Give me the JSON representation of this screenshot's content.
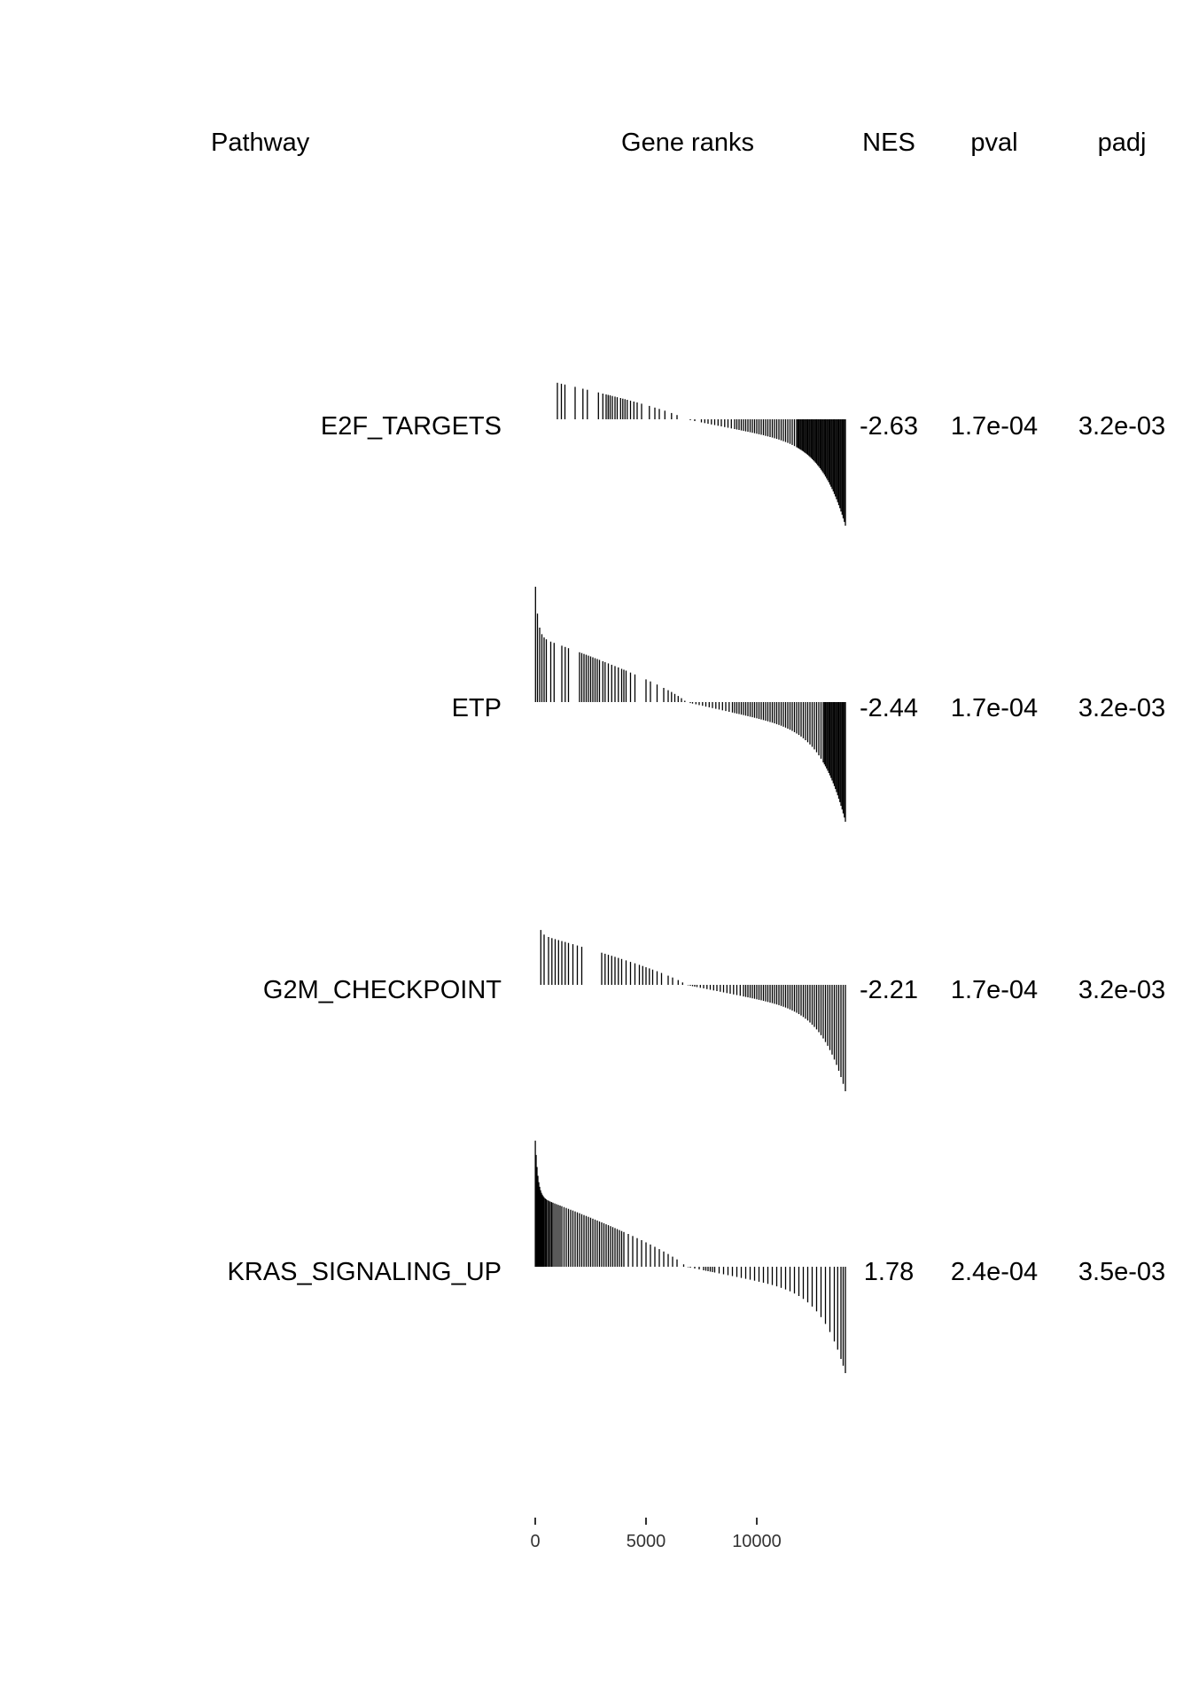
{
  "chart_data": {
    "type": "table",
    "headers": {
      "pathway": "Pathway",
      "gene_ranks": "Gene ranks",
      "nes": "NES",
      "pval": "pval",
      "padj": "padj"
    },
    "x_axis": {
      "range": [
        0,
        14000
      ],
      "ticks": [
        0,
        5000,
        10000
      ],
      "tick_labels": [
        "0",
        "5000",
        "10000"
      ]
    },
    "rank_profile": {
      "description": "ranked gene statistic; positive at low ranks, crosses zero near rank 6800",
      "zero_cross": 6800,
      "max": 1.0,
      "min": -1.0
    },
    "rows": [
      {
        "pathway": "E2F_TARGETS",
        "nes": "-2.63",
        "pval": "1.7e-04",
        "padj": "3.2e-03",
        "hit_ranks": [
          1000,
          1180,
          1340,
          1800,
          2150,
          2350,
          2850,
          3050,
          3200,
          3290,
          3380,
          3480,
          3600,
          3700,
          3850,
          3950,
          4050,
          4150,
          4300,
          4450,
          4600,
          4800,
          5150,
          5400,
          5600,
          5850,
          6150,
          6400,
          7000,
          7200,
          7500,
          7650,
          7800,
          7950,
          8100,
          8250,
          8400,
          8550,
          8700,
          8850,
          9000,
          9100,
          9200,
          9300,
          9400,
          9500,
          9600,
          9700,
          9800,
          9900,
          10000,
          10100,
          10200,
          10300,
          10400,
          10500,
          10600,
          10700,
          10800,
          10900,
          11000,
          11100,
          11200,
          11300,
          11400,
          11500,
          11600,
          11700,
          11800,
          11850,
          11900,
          11950,
          12000,
          12050,
          12100,
          12150,
          12200,
          12250,
          12300,
          12350,
          12400,
          12450,
          12500,
          12550,
          12600,
          12650,
          12700,
          12750,
          12800,
          12850,
          12900,
          12950,
          13000,
          13050,
          13100,
          13150,
          13200,
          13250,
          13300,
          13350,
          13400,
          13450,
          13500,
          13550,
          13600,
          13650,
          13700,
          13750,
          13800,
          13850,
          13900,
          13950,
          14000
        ]
      },
      {
        "pathway": "ETP",
        "nes": "-2.44",
        "pval": "1.7e-04",
        "padj": "3.2e-03",
        "hit_ranks": [
          10,
          100,
          200,
          300,
          400,
          500,
          700,
          850,
          1200,
          1350,
          1500,
          2000,
          2100,
          2200,
          2300,
          2400,
          2500,
          2600,
          2700,
          2800,
          2900,
          3050,
          3150,
          3300,
          3450,
          3600,
          3750,
          3900,
          4000,
          4100,
          4300,
          4500,
          5000,
          5200,
          5500,
          5800,
          6000,
          6150,
          6300,
          6450,
          6600,
          6750,
          7000,
          7100,
          7250,
          7400,
          7550,
          7700,
          7850,
          8000,
          8150,
          8300,
          8450,
          8600,
          8750,
          8900,
          9000,
          9100,
          9200,
          9300,
          9400,
          9500,
          9600,
          9700,
          9800,
          9900,
          10000,
          10100,
          10200,
          10300,
          10400,
          10500,
          10600,
          10700,
          10800,
          10900,
          11000,
          11100,
          11200,
          11300,
          11400,
          11500,
          11600,
          11700,
          11800,
          11900,
          12000,
          12100,
          12200,
          12300,
          12400,
          12500,
          12600,
          12700,
          12800,
          12900,
          13000,
          13050,
          13100,
          13150,
          13200,
          13250,
          13300,
          13350,
          13400,
          13450,
          13500,
          13550,
          13600,
          13650,
          13700,
          13750,
          13800,
          13850,
          13900,
          13950,
          14000
        ]
      },
      {
        "pathway": "G2M_CHECKPOINT",
        "nes": "-2.21",
        "pval": "1.7e-04",
        "padj": "3.2e-03",
        "hit_ranks": [
          250,
          400,
          600,
          750,
          900,
          1050,
          1200,
          1350,
          1500,
          1700,
          1900,
          2100,
          3000,
          3150,
          3300,
          3450,
          3600,
          3750,
          3900,
          4100,
          4300,
          4500,
          4700,
          4850,
          5000,
          5150,
          5300,
          5500,
          5700,
          6000,
          6200,
          6450,
          6650,
          6800,
          6900,
          7000,
          7100,
          7200,
          7300,
          7450,
          7600,
          7750,
          7900,
          8050,
          8200,
          8350,
          8500,
          8650,
          8800,
          8950,
          9100,
          9250,
          9400,
          9500,
          9600,
          9700,
          9800,
          9900,
          10000,
          10100,
          10200,
          10300,
          10400,
          10500,
          10600,
          10700,
          10800,
          10900,
          11000,
          11100,
          11200,
          11300,
          11400,
          11500,
          11600,
          11700,
          11800,
          11900,
          12000,
          12100,
          12200,
          12300,
          12400,
          12500,
          12600,
          12700,
          12800,
          12900,
          13000,
          13100,
          13200,
          13300,
          13400,
          13500,
          13600,
          13700,
          13800,
          13900,
          14000
        ]
      },
      {
        "pathway": "KRAS_SIGNALING_UP",
        "nes": "1.78",
        "pval": "2.4e-04",
        "padj": "3.5e-03",
        "hit_ranks": [
          5,
          40,
          80,
          120,
          160,
          200,
          240,
          280,
          320,
          360,
          400,
          450,
          500,
          560,
          620,
          680,
          740,
          800,
          880,
          960,
          1040,
          1120,
          1200,
          1300,
          1400,
          1500,
          1600,
          1700,
          1800,
          1900,
          2000,
          2100,
          2200,
          2300,
          2400,
          2500,
          2600,
          2700,
          2800,
          2900,
          3000,
          3100,
          3200,
          3300,
          3400,
          3500,
          3600,
          3700,
          3800,
          3900,
          4000,
          4200,
          4400,
          4600,
          4800,
          5000,
          5200,
          5400,
          5600,
          5800,
          6000,
          6200,
          6400,
          6700,
          6800,
          6900,
          7000,
          7200,
          7400,
          7600,
          7700,
          7800,
          7900,
          8000,
          8100,
          8300,
          8500,
          8700,
          8900,
          9100,
          9300,
          9500,
          9700,
          9900,
          10100,
          10300,
          10500,
          10700,
          10900,
          11100,
          11300,
          11500,
          11700,
          11900,
          12100,
          12300,
          12500,
          12700,
          12900,
          13100,
          13300,
          13500,
          13650,
          13800,
          13900,
          14000
        ]
      }
    ]
  }
}
